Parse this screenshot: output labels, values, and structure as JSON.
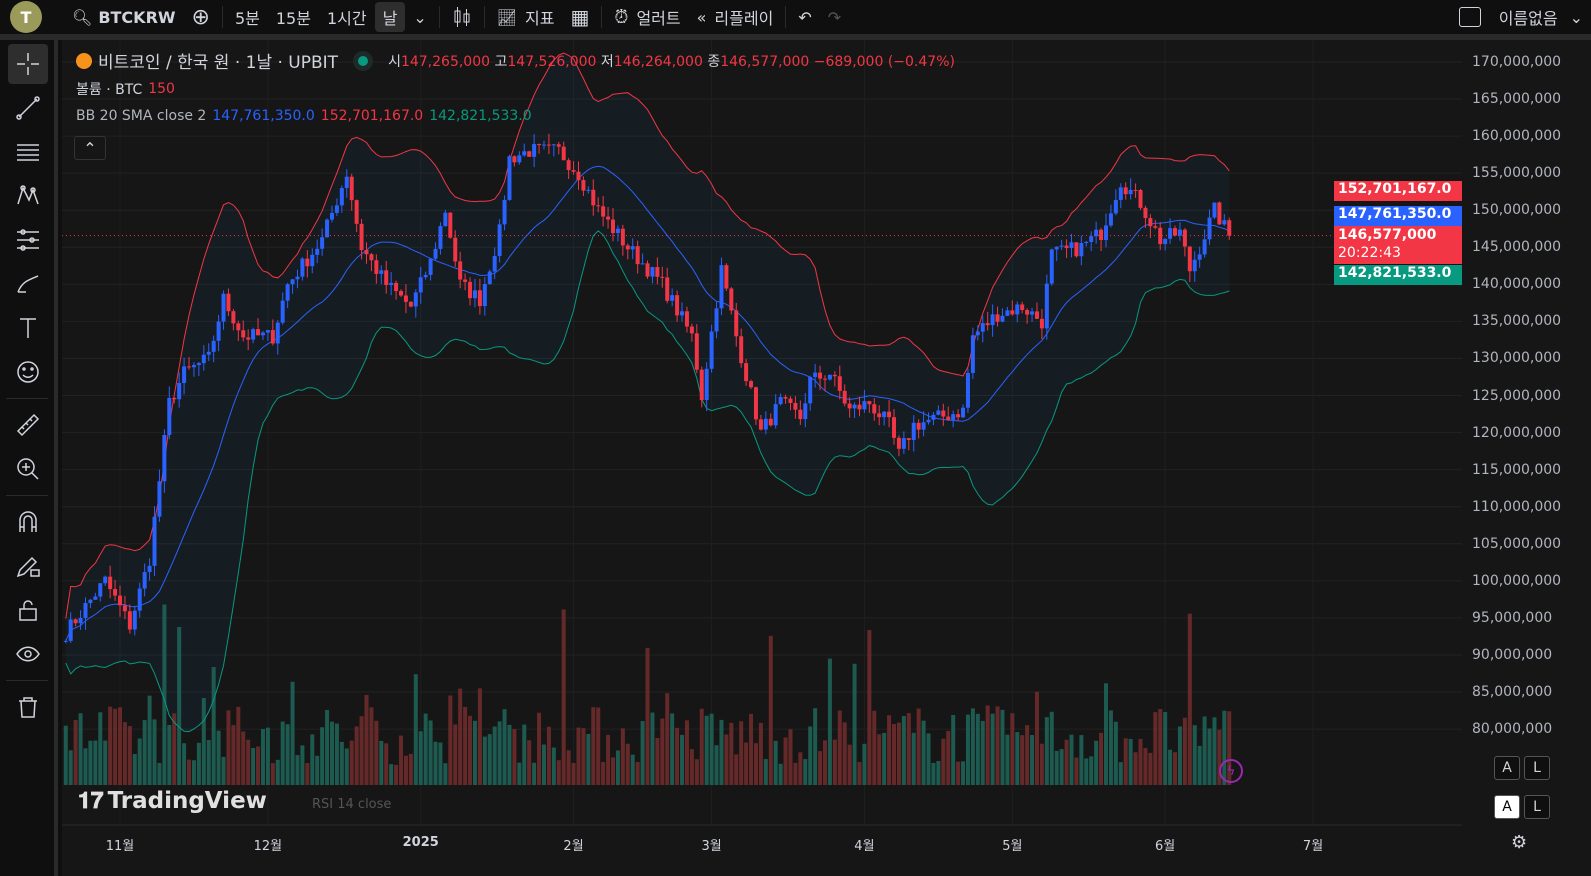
{
  "topbar": {
    "avatar": "T",
    "symbol": "BTCKRW",
    "intervals": [
      "5분",
      "15분",
      "1시간",
      "날"
    ],
    "active_interval": "날",
    "indicators": "지표",
    "alert": "얼러트",
    "replay": "리플레이",
    "layout_name": "이름없음"
  },
  "legend": {
    "title": "비트코인 / 한국 원 · 1날 · UPBIT",
    "o_label": "시",
    "o": "147,265,000",
    "h_label": "고",
    "h": "147,526,000",
    "l_label": "저",
    "l": "146,264,000",
    "c_label": "종",
    "c": "146,577,000",
    "change": "−689,000 (−0.47%)",
    "volume_label": "볼륨 · BTC",
    "volume": "150",
    "bb_label": "BB 20 SMA close 2",
    "bb_basis": "147,761,350.0",
    "bb_upper": "152,701,167.0",
    "bb_lower": "142,821,533.0",
    "rsi_label": "RSI 14 close"
  },
  "price_labels": {
    "upper": "152,701,167.0",
    "basis": "147,761,350.0",
    "last": "146,577,000",
    "countdown": "20:22:43",
    "lower": "142,821,533.0"
  },
  "watermark": "TradingView",
  "scale_tags": {
    "a": "A",
    "l": "L"
  },
  "colors": {
    "up": "#2962ff",
    "down": "#f23645",
    "upper": "#f23645",
    "basis": "#2962ff",
    "lower": "#089981",
    "vol_up": "#1f6b5f",
    "vol_down": "#7a2e2e"
  },
  "chart_data": {
    "type": "candlestick",
    "symbol": "BTCKRW",
    "exchange": "UPBIT",
    "interval": "1D",
    "y_ticks": [
      170000000,
      165000000,
      160000000,
      155000000,
      150000000,
      145000000,
      140000000,
      135000000,
      130000000,
      125000000,
      120000000,
      115000000,
      110000000,
      105000000,
      100000000,
      95000000,
      90000000,
      85000000,
      80000000
    ],
    "y_tick_labels": [
      "170,000,000",
      "165,000,000",
      "160,000,000",
      "155,000,000",
      "150,000,000",
      "145,000,000",
      "140,000,000",
      "135,000,000",
      "130,000,000",
      "125,000,000",
      "120,000,000",
      "115,000,000",
      "110,000,000",
      "105,000,000",
      "100,000,000",
      "95,000,000",
      "90,000,000",
      "85,000,000",
      "80,000,000"
    ],
    "x_ticks": [
      [
        "2024-11-01",
        "11월"
      ],
      [
        "2024-12-01",
        "12월"
      ],
      [
        "2025-01-01",
        "2025"
      ],
      [
        "2025-02-01",
        "2월"
      ],
      [
        "2025-03-01",
        "3월"
      ],
      [
        "2025-04-01",
        "4월"
      ],
      [
        "2025-05-01",
        "5월"
      ],
      [
        "2025-06-01",
        "6월"
      ],
      [
        "2025-07-01",
        "7월"
      ]
    ],
    "x_range": [
      "2024-10-20",
      "2025-07-31"
    ],
    "close_path_millions": [
      [
        "2024-10-21",
        93
      ],
      [
        "2024-10-29",
        100
      ],
      [
        "2024-11-03",
        94
      ],
      [
        "2024-11-07",
        103
      ],
      [
        "2024-11-11",
        124
      ],
      [
        "2024-11-14",
        128
      ],
      [
        "2024-11-19",
        130
      ],
      [
        "2024-11-22",
        138
      ],
      [
        "2024-11-26",
        133
      ],
      [
        "2024-12-02",
        133
      ],
      [
        "2024-12-05",
        140
      ],
      [
        "2024-12-12",
        146
      ],
      [
        "2024-12-17",
        155
      ],
      [
        "2024-12-20",
        145
      ],
      [
        "2024-12-25",
        140
      ],
      [
        "2024-12-30",
        137
      ],
      [
        "2025-01-03",
        143
      ],
      [
        "2025-01-06",
        150
      ],
      [
        "2025-01-09",
        140
      ],
      [
        "2025-01-13",
        138
      ],
      [
        "2025-01-17",
        147
      ],
      [
        "2025-01-19",
        157
      ],
      [
        "2025-01-23",
        158
      ],
      [
        "2025-01-29",
        158
      ],
      [
        "2025-02-02",
        155
      ],
      [
        "2025-02-06",
        150
      ],
      [
        "2025-02-12",
        145
      ],
      [
        "2025-02-19",
        140
      ],
      [
        "2025-02-25",
        133
      ],
      [
        "2025-02-27",
        125
      ],
      [
        "2025-03-03",
        142
      ],
      [
        "2025-03-06",
        133
      ],
      [
        "2025-03-11",
        120
      ],
      [
        "2025-03-15",
        124
      ],
      [
        "2025-03-19",
        122
      ],
      [
        "2025-03-21",
        127
      ],
      [
        "2025-03-25",
        128
      ],
      [
        "2025-03-29",
        123
      ],
      [
        "2025-04-02",
        124
      ],
      [
        "2025-04-06",
        121
      ],
      [
        "2025-04-08",
        117
      ],
      [
        "2025-04-11",
        121
      ],
      [
        "2025-04-16",
        122
      ],
      [
        "2025-04-21",
        123
      ],
      [
        "2025-04-23",
        133
      ],
      [
        "2025-04-28",
        136
      ],
      [
        "2025-05-03",
        137
      ],
      [
        "2025-05-07",
        135
      ],
      [
        "2025-05-09",
        144
      ],
      [
        "2025-05-15",
        145
      ],
      [
        "2025-05-19",
        147
      ],
      [
        "2025-05-23",
        154
      ],
      [
        "2025-05-27",
        151
      ],
      [
        "2025-05-31",
        146
      ],
      [
        "2025-06-04",
        147
      ],
      [
        "2025-06-06",
        142
      ],
      [
        "2025-06-08",
        145
      ],
      [
        "2025-06-11",
        150
      ],
      [
        "2025-06-14",
        146.577
      ]
    ],
    "bollinger": {
      "period": 20,
      "stddev": 2,
      "last_basis": 147761350.0,
      "last_upper": 152701167.0,
      "last_lower": 142821533.0
    },
    "grid": true
  }
}
